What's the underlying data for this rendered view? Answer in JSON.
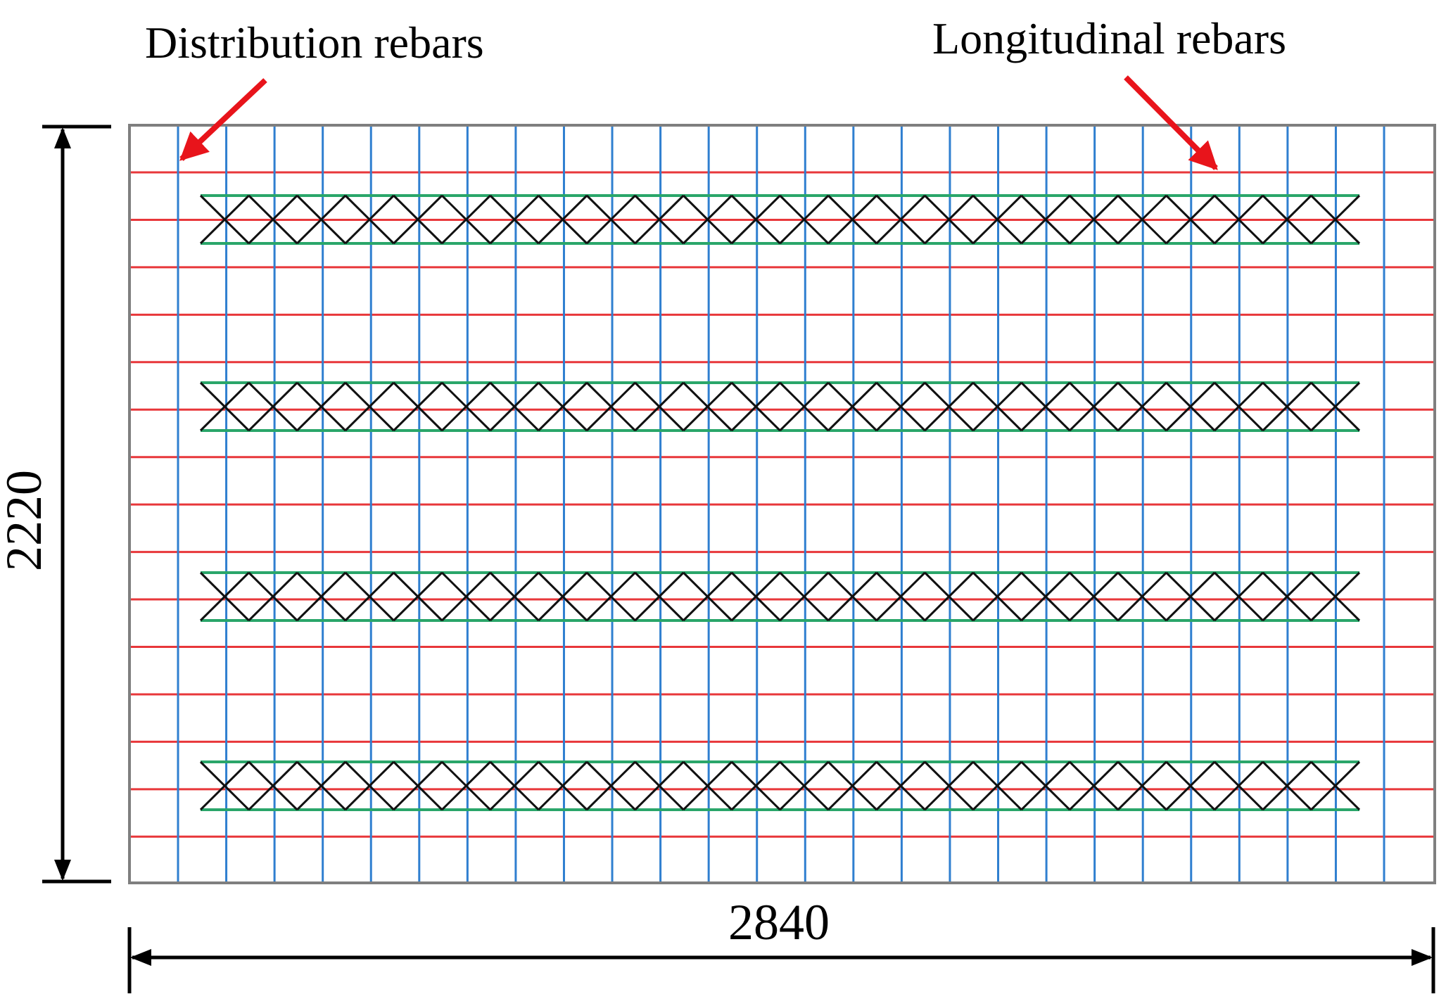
{
  "labels": {
    "distribution": "Distribution rebars",
    "longitudinal": "Longitudinal rebars",
    "height": "2220",
    "width": "2840"
  },
  "colors": {
    "frame": "#7f7f7f",
    "distribution_rebar": "#2f7fd0",
    "longitudinal_rebar": "#e8373a",
    "truss_chord": "#2aa66a",
    "truss_web": "#111111",
    "arrow": "#e8141b",
    "dimension": "#000000"
  },
  "layout": {
    "distribution_rebar_count": 26,
    "longitudinal_rebar_count": 15,
    "truss_row_count": 4,
    "truss_diamonds_per_row": 24
  }
}
